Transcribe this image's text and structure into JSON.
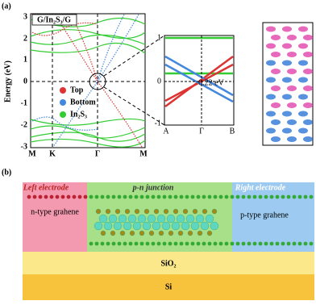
{
  "panel_a": {
    "label": "(a)",
    "band": {
      "title": "G/In₂S₃/G",
      "y_label": "Energy (eV)",
      "yticks": [
        "3",
        "2",
        "1",
        "0",
        "-1",
        "-2",
        "-3"
      ],
      "xticks": [
        "M",
        "K",
        "Γ",
        "M"
      ],
      "legend": [
        "Top",
        "Bottom",
        "In₂S₃"
      ]
    },
    "zoom": {
      "yticks": [
        "1",
        "0",
        "-1"
      ],
      "xticks": [
        "A",
        "Γ",
        "B"
      ],
      "annotation": "0.22 eV"
    }
  },
  "panel_b": {
    "label": "(b)",
    "left_electrode": "Left electrode",
    "junction": "p-n junction",
    "right_electrode": "Right electrode",
    "n_type": "n-type grahene",
    "p_type": "p-type grahene",
    "sio2": "SiO₂",
    "si": "Si"
  }
}
